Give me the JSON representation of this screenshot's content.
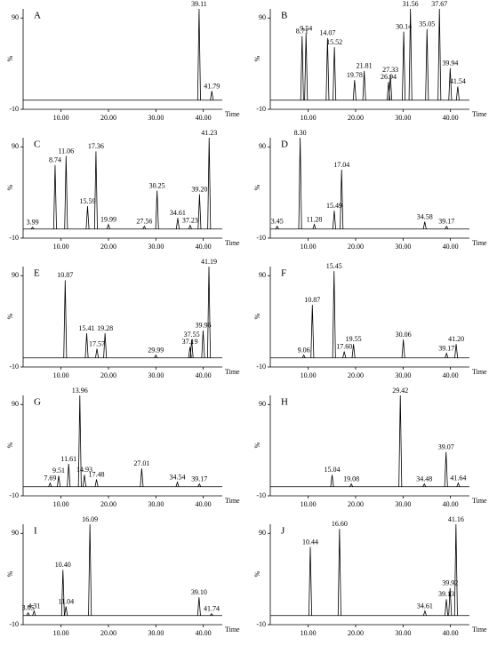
{
  "chart_data": [
    {
      "type": "peaks",
      "title": "A",
      "y_label": "%",
      "x_label": "Time",
      "xlim": [
        2,
        44
      ],
      "ylim": [
        -10,
        100
      ],
      "yticks": [
        90,
        -10
      ],
      "xticks": [
        {
          "value": 10,
          "label": "10.00"
        },
        {
          "value": 20,
          "label": "20.00"
        },
        {
          "value": 30,
          "label": "30.00"
        },
        {
          "value": 40,
          "label": "40.00"
        }
      ],
      "x": [
        39.11,
        41.79
      ],
      "x_labels": [
        "39.11",
        "41.79"
      ],
      "values": [
        100,
        10
      ]
    },
    {
      "type": "peaks",
      "title": "B",
      "y_label": "%",
      "x_label": "Time",
      "xlim": [
        2,
        44
      ],
      "ylim": [
        -10,
        100
      ],
      "yticks": [
        90,
        -10
      ],
      "xticks": [
        {
          "value": 10,
          "label": "10.00"
        },
        {
          "value": 20,
          "label": "20.00"
        },
        {
          "value": 30,
          "label": "30.00"
        },
        {
          "value": 40,
          "label": "40.00"
        }
      ],
      "x": [
        8.71,
        9.54,
        14.07,
        15.52,
        19.78,
        21.81,
        26.94,
        27.33,
        30.14,
        31.56,
        35.05,
        37.67,
        39.94,
        41.54
      ],
      "x_labels": [
        "8.71",
        "9.54",
        "14.07",
        "15.52",
        "19.78",
        "21.81",
        "26.94",
        "27.33",
        "30.14",
        "31.56",
        "35.05",
        "37.67",
        "39.94",
        "41.54"
      ],
      "values": [
        70,
        73,
        68,
        58,
        22,
        32,
        20,
        28,
        75,
        100,
        78,
        100,
        35,
        15
      ]
    },
    {
      "type": "peaks",
      "title": "C",
      "y_label": "%",
      "x_label": "Time",
      "xlim": [
        2,
        44
      ],
      "ylim": [
        -10,
        100
      ],
      "yticks": [
        90,
        -10
      ],
      "xticks": [
        {
          "value": 10,
          "label": "10.00"
        },
        {
          "value": 20,
          "label": "20.00"
        },
        {
          "value": 30,
          "label": "30.00"
        },
        {
          "value": 40,
          "label": "40.00"
        }
      ],
      "x": [
        3.99,
        8.74,
        11.06,
        15.59,
        17.36,
        19.99,
        27.56,
        30.25,
        34.61,
        37.23,
        39.2,
        41.23
      ],
      "x_labels": [
        "3.99",
        "8.74",
        "11.06",
        "15.59",
        "17.36",
        "19.99",
        "27.56",
        "30.25",
        "34.61",
        "37.23",
        "39.20",
        "41.23"
      ],
      "values": [
        2,
        70,
        80,
        25,
        85,
        5,
        3,
        42,
        12,
        4,
        38,
        100
      ]
    },
    {
      "type": "peaks",
      "title": "D",
      "y_label": "%",
      "x_label": "Time",
      "xlim": [
        2,
        44
      ],
      "ylim": [
        -10,
        100
      ],
      "yticks": [
        90,
        -10
      ],
      "xticks": [
        {
          "value": 10,
          "label": "10.00"
        },
        {
          "value": 20,
          "label": "20.00"
        },
        {
          "value": 30,
          "label": "30.00"
        },
        {
          "value": 40,
          "label": "40.00"
        }
      ],
      "x": [
        3.45,
        8.3,
        11.28,
        15.49,
        17.04,
        34.58,
        39.17
      ],
      "x_labels": [
        "3.45",
        "8.30",
        "11.28",
        "15.49",
        "17.04",
        "34.58",
        "39.17"
      ],
      "values": [
        3,
        100,
        5,
        20,
        65,
        8,
        3
      ]
    },
    {
      "type": "peaks",
      "title": "E",
      "y_label": "%",
      "x_label": "Time",
      "xlim": [
        2,
        44
      ],
      "ylim": [
        -10,
        100
      ],
      "yticks": [
        90,
        -10
      ],
      "xticks": [
        {
          "value": 10,
          "label": "10.00"
        },
        {
          "value": 20,
          "label": "20.00"
        },
        {
          "value": 30,
          "label": "30.00"
        },
        {
          "value": 40,
          "label": "40.00"
        }
      ],
      "x": [
        10.87,
        15.41,
        17.57,
        19.28,
        29.99,
        37.19,
        37.55,
        39.96,
        41.19
      ],
      "x_labels": [
        "10.87",
        "15.41",
        "17.57",
        "19.28",
        "29.99",
        "37.19",
        "37.55",
        "39.96",
        "41.19"
      ],
      "values": [
        85,
        27,
        10,
        27,
        3,
        12,
        20,
        30,
        100
      ]
    },
    {
      "type": "peaks",
      "title": "F",
      "y_label": "%",
      "x_label": "Time",
      "xlim": [
        2,
        44
      ],
      "ylim": [
        -10,
        100
      ],
      "yticks": [
        90,
        -10
      ],
      "xticks": [
        {
          "value": 10,
          "label": "10.00"
        },
        {
          "value": 20,
          "label": "20.00"
        },
        {
          "value": 30,
          "label": "30.00"
        },
        {
          "value": 40,
          "label": "40.00"
        }
      ],
      "x": [
        9.06,
        10.87,
        15.45,
        17.6,
        19.55,
        30.06,
        39.17,
        41.2
      ],
      "x_labels": [
        "9.06",
        "10.87",
        "15.45",
        "17.60",
        "19.55",
        "30.06",
        "39.17",
        "41.20"
      ],
      "values": [
        3,
        58,
        95,
        7,
        15,
        20,
        5,
        15
      ]
    },
    {
      "type": "peaks",
      "title": "G",
      "y_label": "%",
      "x_label": "Time",
      "xlim": [
        2,
        44
      ],
      "ylim": [
        -10,
        100
      ],
      "yticks": [
        90,
        -10
      ],
      "xticks": [
        {
          "value": 10,
          "label": "10.00"
        },
        {
          "value": 20,
          "label": "20.00"
        },
        {
          "value": 30,
          "label": "30.00"
        },
        {
          "value": 40,
          "label": "40.00"
        }
      ],
      "x": [
        7.69,
        9.51,
        11.61,
        13.96,
        14.93,
        17.48,
        27.01,
        34.54,
        39.17
      ],
      "x_labels": [
        "7.69",
        "9.51",
        "11.61",
        "13.96",
        "14.93",
        "17.48",
        "27.01",
        "34.54",
        "39.17"
      ],
      "values": [
        4,
        12,
        25,
        100,
        13,
        8,
        20,
        5,
        3
      ]
    },
    {
      "type": "peaks",
      "title": "H",
      "y_label": "%",
      "x_label": "Time",
      "xlim": [
        2,
        44
      ],
      "ylim": [
        -10,
        100
      ],
      "yticks": [
        90,
        -10
      ],
      "xticks": [
        {
          "value": 10,
          "label": "10.00"
        },
        {
          "value": 20,
          "label": "20.00"
        },
        {
          "value": 30,
          "label": "30.00"
        },
        {
          "value": 40,
          "label": "40.00"
        }
      ],
      "x": [
        15.04,
        19.08,
        29.42,
        34.48,
        39.07,
        41.64
      ],
      "x_labels": [
        "15.04",
        "19.08",
        "29.42",
        "34.48",
        "39.07",
        "41.64"
      ],
      "values": [
        13,
        3,
        100,
        3,
        38,
        4
      ]
    },
    {
      "type": "peaks",
      "title": "I",
      "y_label": "%",
      "x_label": "Time",
      "xlim": [
        2,
        44
      ],
      "ylim": [
        -10,
        100
      ],
      "yticks": [
        90,
        -10
      ],
      "xticks": [
        {
          "value": 10,
          "label": "10.00"
        },
        {
          "value": 20,
          "label": "20.00"
        },
        {
          "value": 30,
          "label": "30.00"
        },
        {
          "value": 40,
          "label": "40.00"
        }
      ],
      "x": [
        3.05,
        4.31,
        10.4,
        11.04,
        16.09,
        39.1,
        41.74
      ],
      "x_labels": [
        "3.05",
        "4.31",
        "10.40",
        "11.04",
        "16.09",
        "39.10",
        "41.74"
      ],
      "values": [
        3,
        5,
        50,
        10,
        100,
        20,
        2
      ]
    },
    {
      "type": "peaks",
      "title": "J",
      "y_label": "%",
      "x_label": "Time",
      "xlim": [
        2,
        44
      ],
      "ylim": [
        -10,
        100
      ],
      "yticks": [
        90,
        -10
      ],
      "xticks": [
        {
          "value": 10,
          "label": "10.00"
        },
        {
          "value": 20,
          "label": "20.00"
        },
        {
          "value": 30,
          "label": "30.00"
        },
        {
          "value": 40,
          "label": "40.00"
        }
      ],
      "x": [
        10.44,
        16.6,
        34.61,
        39.13,
        39.92,
        41.16
      ],
      "x_labels": [
        "10.44",
        "16.60",
        "34.61",
        "39.13",
        "39.92",
        "41.16"
      ],
      "values": [
        75,
        95,
        5,
        18,
        30,
        100
      ]
    }
  ]
}
